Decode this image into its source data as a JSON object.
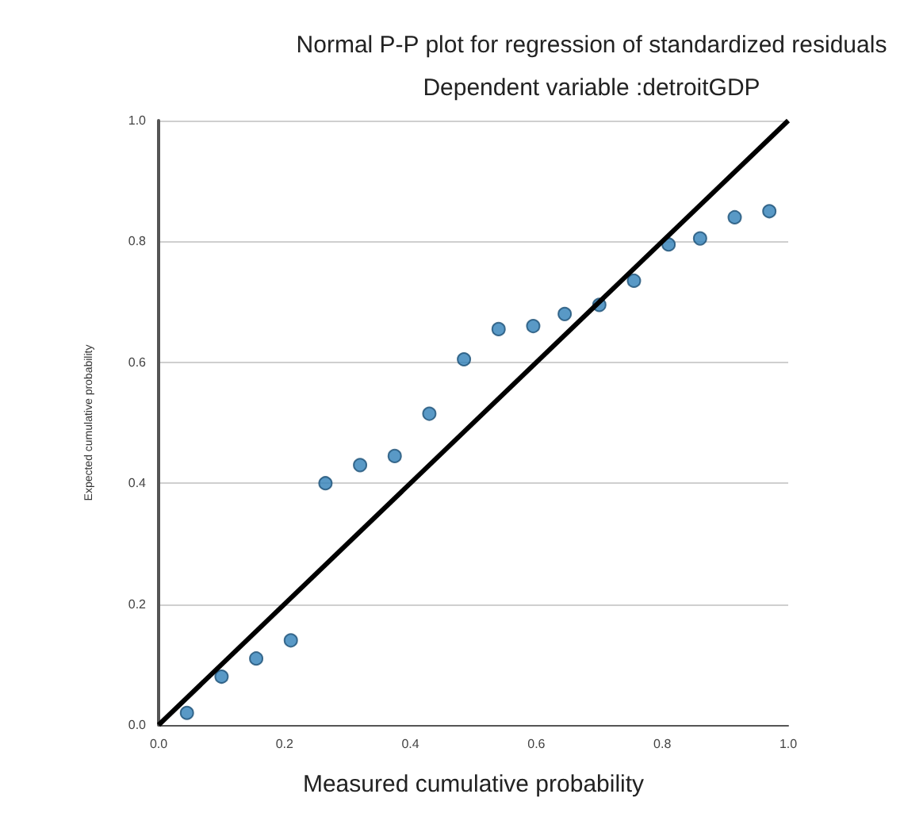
{
  "chart_data": {
    "type": "scatter",
    "title": "Normal P-P plot for regression of standardized residuals",
    "subtitle": "Dependent variable :detroitGDP",
    "xlabel": "Measured cumulative probability",
    "ylabel": "Expected cumulative probability",
    "xlim": [
      0,
      1
    ],
    "ylim": [
      0,
      1
    ],
    "xticks": [
      {
        "value": 0,
        "label": "0.0"
      },
      {
        "value": 0.2,
        "label": "0.2"
      },
      {
        "value": 0.4,
        "label": "0.4"
      },
      {
        "value": 0.6,
        "label": "0.6"
      },
      {
        "value": 0.8,
        "label": "0.8"
      },
      {
        "value": 1,
        "label": "1.0"
      }
    ],
    "yticks": [
      {
        "value": 0,
        "label": "0.0"
      },
      {
        "value": 0.2,
        "label": "0.2"
      },
      {
        "value": 0.4,
        "label": "0.4"
      },
      {
        "value": 0.6,
        "label": "0.6"
      },
      {
        "value": 0.8,
        "label": "0.8"
      },
      {
        "value": 1,
        "label": "1.0"
      }
    ],
    "grid": "y",
    "marker": "circle",
    "series": [
      {
        "color": "#2f7fb8",
        "x": [
          0.045,
          0.1,
          0.155,
          0.21,
          0.265,
          0.32,
          0.375,
          0.43,
          0.485,
          0.54,
          0.595,
          0.645,
          0.7,
          0.755,
          0.81,
          0.86,
          0.915,
          0.97
        ],
        "values": [
          0.02,
          0.08,
          0.11,
          0.14,
          0.4,
          0.43,
          0.445,
          0.515,
          0.605,
          0.655,
          0.66,
          0.68,
          0.695,
          0.735,
          0.795,
          0.805,
          0.84,
          0.85
        ]
      },
      {
        "type": "line",
        "color": "#000000",
        "x": [
          0,
          1
        ],
        "values": [
          0,
          1
        ],
        "marker": "none",
        "line_style": "solid"
      }
    ]
  }
}
